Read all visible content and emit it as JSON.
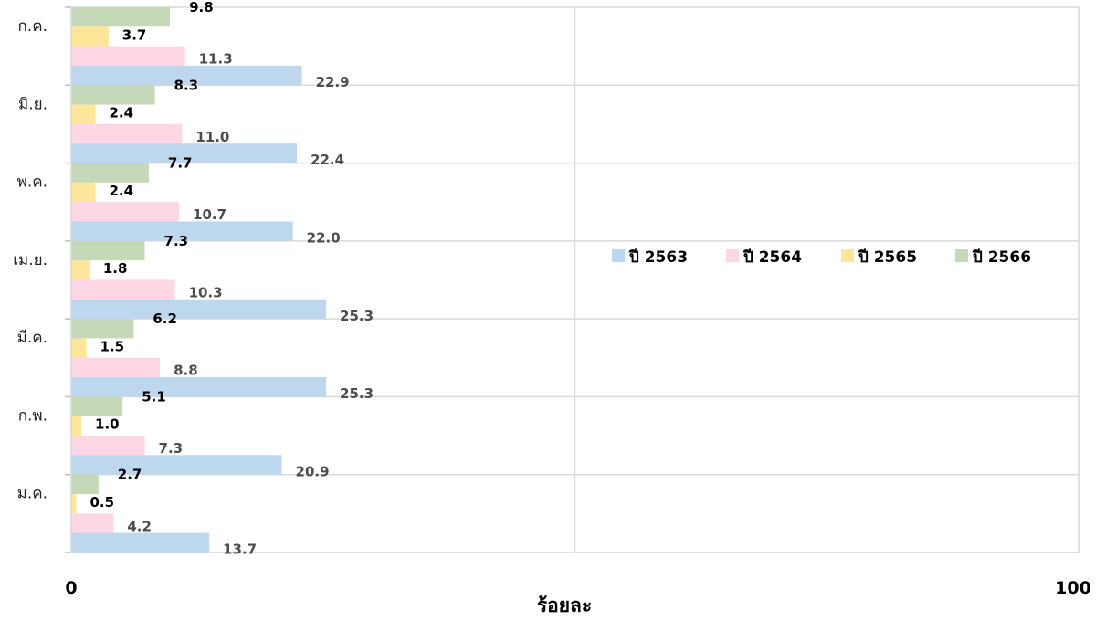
{
  "chart_data": {
    "type": "bar",
    "orientation": "horizontal",
    "title": "",
    "xlabel": "ร้อยละ",
    "ylabel": "",
    "xlim": [
      0,
      100
    ],
    "x_tick_labels": [
      "0",
      "100"
    ],
    "grid": true,
    "legend_position": "right",
    "categories": [
      "ม.ค.",
      "ก.พ.",
      "มี.ค.",
      "เม.ย.",
      "พ.ค.",
      "มิ.ย.",
      "ก.ค."
    ],
    "series": [
      {
        "name": "ปี 2566",
        "color": "#c5d9b9",
        "label_color": "#000000",
        "values": [
          2.7,
          5.1,
          6.2,
          7.3,
          7.7,
          8.3,
          9.8
        ]
      },
      {
        "name": "ปี 2565",
        "color": "#fde599",
        "label_color": "#000000",
        "values": [
          0.5,
          1.0,
          1.5,
          1.8,
          2.4,
          2.4,
          3.7
        ]
      },
      {
        "name": "ปี 2564",
        "color": "#ffd6e4",
        "label_color": "#4d4d4d",
        "values": [
          4.2,
          7.3,
          8.8,
          10.3,
          10.7,
          11.0,
          11.3
        ]
      },
      {
        "name": "ปี 2563",
        "color": "#bdd7ee",
        "label_color": "#4d4d4d",
        "values": [
          13.7,
          20.9,
          25.3,
          25.3,
          22.0,
          22.4,
          22.9
        ]
      }
    ],
    "value_labels": {
      "ปี 2566": [
        "2.7",
        "5.1",
        "6.2",
        "7.3",
        "7.7",
        "8.3",
        "9.8"
      ],
      "ปี 2565": [
        "0.5",
        "1.0",
        "1.5",
        "1.8",
        "2.4",
        "2.4",
        "3.7"
      ],
      "ปี 2564": [
        "4.2",
        "7.3",
        "8.8",
        "10.3",
        "10.7",
        "11.0",
        "11.3"
      ],
      "ปี 2563": [
        "13.7",
        "20.9",
        "25.3",
        "25.3",
        "22.0",
        "22.4",
        "22.9"
      ]
    }
  }
}
